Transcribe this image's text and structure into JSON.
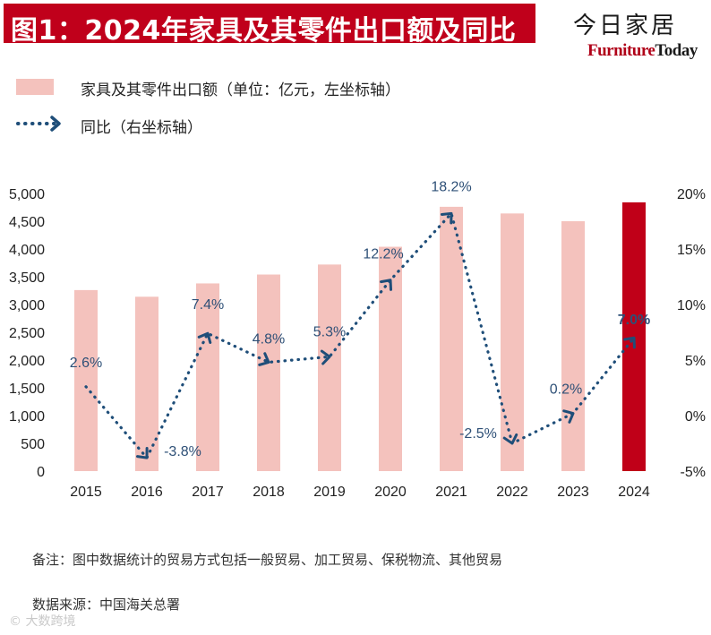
{
  "header": {
    "title": "图1：2024年家具及其零件出口额及同比",
    "brand_cn": "今日家居",
    "brand_en_part1": "Furniture",
    "brand_en_part2": "Today"
  },
  "colors": {
    "title_bg": "#c0001b",
    "bar": "#f4c2bd",
    "bar_highlight": "#c00018",
    "line": "#1f4e79",
    "label": "#2e5077"
  },
  "chart_data": {
    "type": "bar+line",
    "categories": [
      "2015",
      "2016",
      "2017",
      "2018",
      "2019",
      "2020",
      "2021",
      "2022",
      "2023",
      "2024"
    ],
    "series": [
      {
        "name": "家具及其零件出口额（单位：亿元，左坐标轴）",
        "axis": "left",
        "type": "bar",
        "values": [
          3260,
          3140,
          3380,
          3540,
          3720,
          4040,
          4760,
          4640,
          4500,
          4840
        ],
        "highlight_index": 9
      },
      {
        "name": "同比（右坐标轴）",
        "axis": "right",
        "type": "line",
        "values": [
          2.6,
          -3.8,
          7.4,
          4.8,
          5.3,
          12.2,
          18.2,
          -2.5,
          0.2,
          7.0
        ],
        "labels": [
          "2.6%",
          "-3.8%",
          "7.4%",
          "4.8%",
          "5.3%",
          "12.2%",
          "18.2%",
          "-2.5%",
          "0.2%",
          "7.0%"
        ]
      }
    ],
    "left_axis": {
      "ylim": [
        0,
        5000
      ],
      "ticks": [
        0,
        500,
        1000,
        1500,
        2000,
        2500,
        3000,
        3500,
        4000,
        4500,
        5000
      ],
      "tick_labels": [
        "0",
        "500",
        "1,000",
        "1,500",
        "2,000",
        "2,500",
        "3,000",
        "3,500",
        "4,000",
        "4,500",
        "5,000"
      ]
    },
    "right_axis": {
      "ylim": [
        -5,
        20
      ],
      "ticks": [
        -5,
        0,
        5,
        10,
        15,
        20
      ],
      "tick_labels": [
        "-5%",
        "0%",
        "5%",
        "10%",
        "15%",
        "20%"
      ]
    },
    "legend": {
      "bar_label": "家具及其零件出口额（单位：亿元，左坐标轴）",
      "line_label": "同比（右坐标轴）",
      "placement": "top-left"
    },
    "grid": false
  },
  "footer": {
    "note": "备注：图中数据统计的贸易方式包括一般贸易、加工贸易、保税物流、其他贸易",
    "source": "数据来源：中国海关总署"
  }
}
